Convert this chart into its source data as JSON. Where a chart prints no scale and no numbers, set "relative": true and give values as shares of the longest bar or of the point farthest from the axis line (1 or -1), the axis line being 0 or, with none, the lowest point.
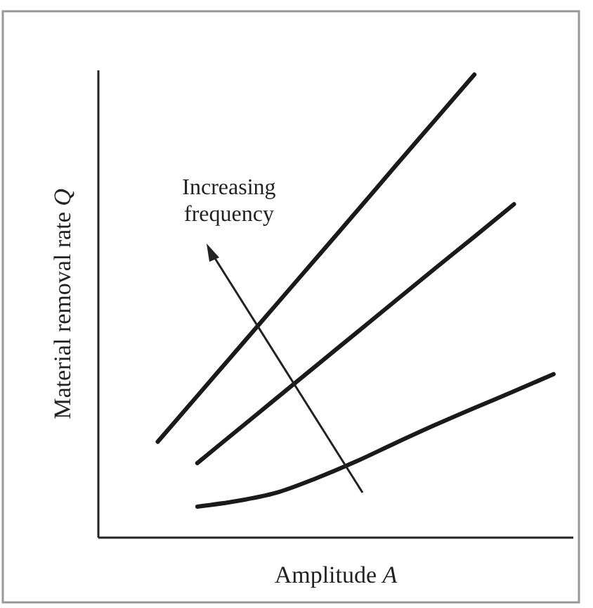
{
  "chart_data": {
    "type": "line",
    "relative": true,
    "xlabel": "Amplitude A",
    "ylabel": "Material removal rate Q",
    "categories": [
      null,
      null,
      null,
      null,
      null,
      null,
      null,
      null,
      null,
      null,
      null,
      null
    ],
    "series": [
      {
        "color": "#1a1a1a",
        "values": [
          null,
          0.207,
          0.306,
          0.405,
          0.504,
          0.603,
          0.702,
          0.802,
          0.901,
          1.0,
          null,
          null
        ]
      },
      {
        "color": "#1a1a1a",
        "values": [
          null,
          null,
          0.161,
          0.231,
          0.301,
          0.371,
          0.441,
          0.511,
          0.581,
          0.65,
          0.72,
          null
        ]
      },
      {
        "color": "#1a1a1a",
        "values": [
          null,
          null,
          0.067,
          0.079,
          0.097,
          0.128,
          0.164,
          0.204,
          0.243,
          0.28,
          0.316,
          0.353
        ]
      }
    ],
    "annotations": [
      "Increasing frequency"
    ],
    "grid": false,
    "marker": "none",
    "line_style": "solid"
  }
}
